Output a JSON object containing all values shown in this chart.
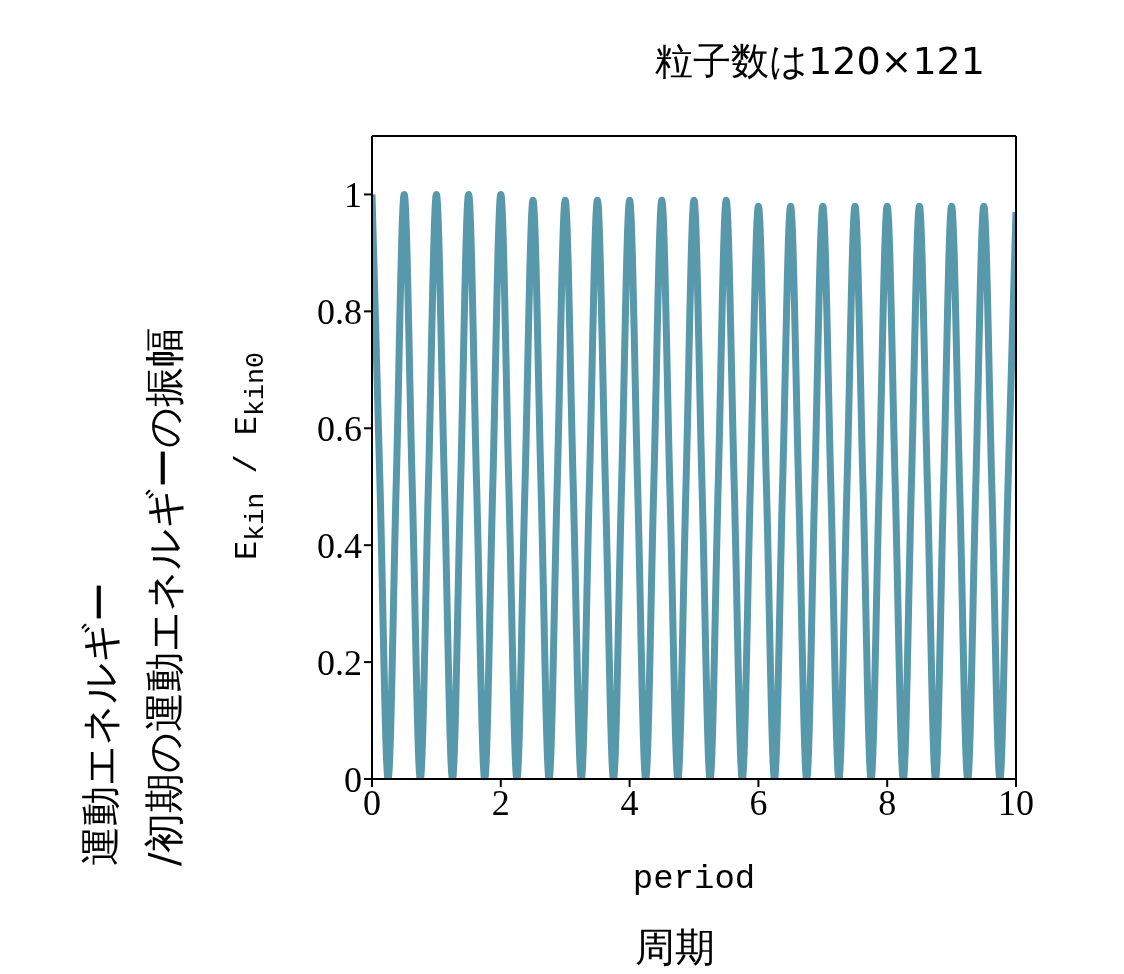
{
  "chart_data": {
    "type": "line",
    "title": "粒子数は120×121",
    "xlabel": "period",
    "ylabel": "E$_{kin}$ / E$_{kin0}$",
    "annotations": [
      "周期",
      "運動エネルギー\n/初期の運動エネルギーの振幅"
    ],
    "x": [
      0,
      0.125,
      0.25,
      0.375,
      0.5,
      0.625,
      0.75,
      0.875,
      1,
      1.125,
      1.25,
      1.375,
      1.5,
      1.625,
      1.75,
      1.875,
      2,
      2.125,
      2.25,
      2.375,
      2.5,
      2.625,
      2.75,
      2.875,
      3,
      3.125,
      3.25,
      3.375,
      3.5,
      3.625,
      3.75,
      3.875,
      4,
      4.125,
      4.25,
      4.375,
      4.5,
      4.625,
      4.75,
      4.875,
      5,
      5.125,
      5.25,
      5.375,
      5.5,
      5.625,
      5.75,
      5.875,
      6,
      6.125,
      6.25,
      6.375,
      6.5,
      6.625,
      6.75,
      6.875,
      7,
      7.125,
      7.25,
      7.375,
      7.5,
      7.625,
      7.75,
      7.875,
      8,
      8.125,
      8.25,
      8.375,
      8.5,
      8.625,
      8.75,
      8.875,
      9,
      9.125,
      9.25,
      9.375,
      9.5,
      9.625,
      9.75,
      9.875,
      10
    ],
    "series": [
      {
        "color": "#5799ab",
        "values": [
          1,
          0.5,
          0,
          0.5,
          1,
          0.5,
          0,
          0.5,
          1,
          0.5,
          0,
          0.5,
          1,
          0.5,
          0,
          0.5,
          1,
          0.5,
          0,
          0.5,
          0.99,
          0.5,
          0,
          0.5,
          0.99,
          0.5,
          0,
          0.5,
          0.99,
          0.5,
          0,
          0.5,
          0.99,
          0.5,
          0,
          0.5,
          0.99,
          0.5,
          0,
          0.5,
          0.99,
          0.5,
          0,
          0.5,
          0.99,
          0.5,
          0,
          0.5,
          0.98,
          0.5,
          0,
          0.5,
          0.98,
          0.5,
          0,
          0.5,
          0.98,
          0.5,
          0,
          0.5,
          0.98,
          0.5,
          0,
          0.5,
          0.98,
          0.5,
          0,
          0.5,
          0.98,
          0.5,
          0,
          0.5,
          0.98,
          0.5,
          0,
          0.5,
          0.98,
          0.5,
          0,
          0.5,
          0.97
        ]
      }
    ],
    "xlim": [
      0,
      10
    ],
    "xticks": [
      0,
      2,
      4,
      6,
      8,
      10
    ],
    "ylim": [
      0,
      1.1
    ],
    "yticks": [
      0,
      0.2,
      0.4,
      0.6,
      0.8,
      1
    ]
  }
}
